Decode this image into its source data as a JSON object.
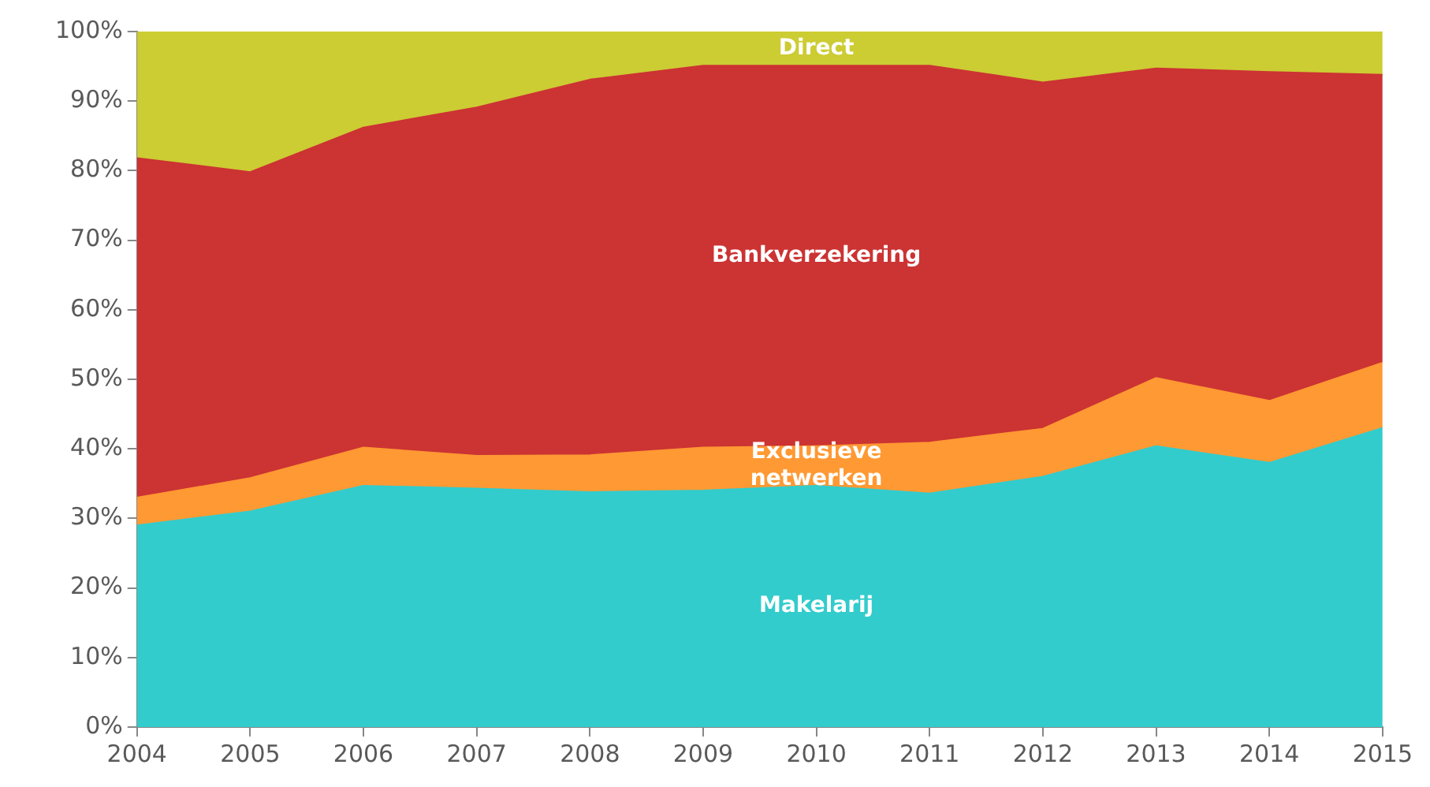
{
  "chart_data": {
    "type": "area",
    "stacked": true,
    "legend": false,
    "grid": false,
    "x": [
      2004,
      2005,
      2006,
      2007,
      2008,
      2009,
      2010,
      2011,
      2012,
      2013,
      2014,
      2015
    ],
    "xlim": [
      2004,
      2015
    ],
    "xticks": [
      2004,
      2005,
      2006,
      2007,
      2008,
      2009,
      2010,
      2011,
      2012,
      2013,
      2014,
      2015
    ],
    "ylim": [
      0,
      100
    ],
    "yticks": [
      {
        "value": 0,
        "label": "0%"
      },
      {
        "value": 10,
        "label": "10%"
      },
      {
        "value": 20,
        "label": "20%"
      },
      {
        "value": 30,
        "label": "30%"
      },
      {
        "value": 40,
        "label": "40%"
      },
      {
        "value": 50,
        "label": "50%"
      },
      {
        "value": 60,
        "label": "60%"
      },
      {
        "value": 70,
        "label": "70%"
      },
      {
        "value": 80,
        "label": "80%"
      },
      {
        "value": 90,
        "label": "90%"
      },
      {
        "value": 100,
        "label": "100%"
      }
    ],
    "series": [
      {
        "name": "Makelarij",
        "color": "#33cccc",
        "values": [
          29,
          31,
          34.7,
          34.3,
          33.8,
          34,
          34.7,
          33.6,
          36,
          40.4,
          38,
          43
        ]
      },
      {
        "name": "Exclusieve netwerken",
        "color": "#ff9933",
        "values": [
          4,
          4.8,
          5.5,
          4.7,
          5.3,
          6.2,
          5.7,
          7.3,
          6.9,
          9.8,
          8.9,
          9.4
        ]
      },
      {
        "name": "Bankverzekering",
        "color": "#cc3333",
        "values": [
          48.8,
          44,
          46,
          50.1,
          54,
          54.9,
          54.7,
          54.2,
          49.8,
          44.5,
          47.3,
          41.4
        ]
      },
      {
        "name": "Direct",
        "color": "#cccc33",
        "values": [
          18.2,
          20.2,
          13.8,
          10.9,
          6.9,
          4.9,
          4.9,
          4.9,
          7.3,
          5.3,
          5.8,
          6.2
        ]
      }
    ]
  }
}
